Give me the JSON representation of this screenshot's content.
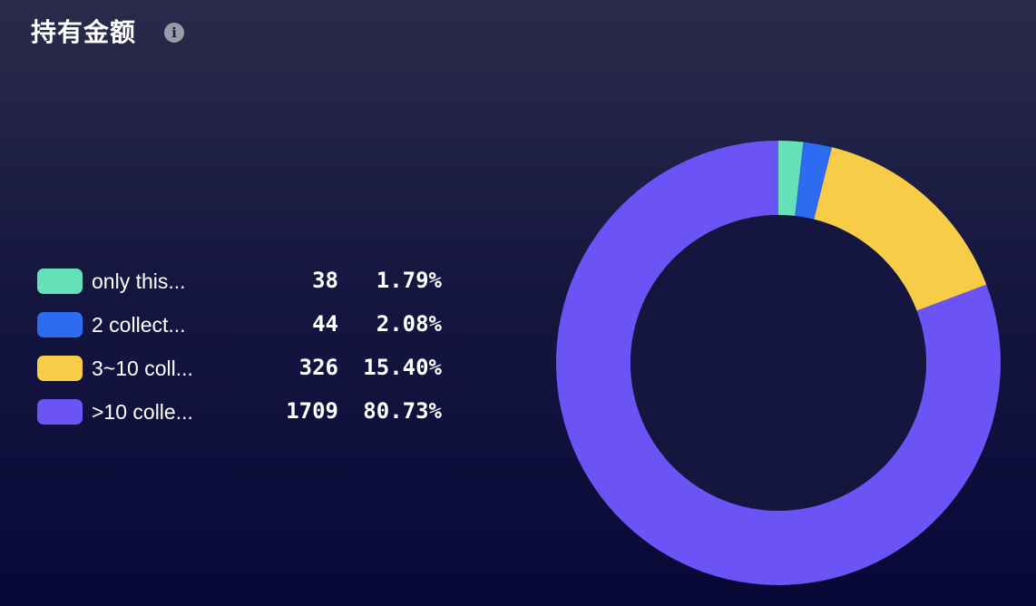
{
  "header": {
    "title": "持有金额",
    "info_icon": "info-icon"
  },
  "chart_data": {
    "type": "pie",
    "variant": "donut",
    "categories": [
      "only this...",
      "2 collect...",
      "3~10 coll...",
      ">10 colle..."
    ],
    "values": [
      38,
      44,
      326,
      1709
    ],
    "percentages": [
      "1.79%",
      "2.08%",
      "15.40%",
      "80.73%"
    ],
    "colors": [
      "#66e0b6",
      "#2d6bf0",
      "#f7cd47",
      "#6c53f5"
    ],
    "legend_placement": "left"
  },
  "colors": {
    "background_top": "#2a2b4b",
    "background_bottom": "#080838",
    "donut_hole": "#14163f"
  }
}
